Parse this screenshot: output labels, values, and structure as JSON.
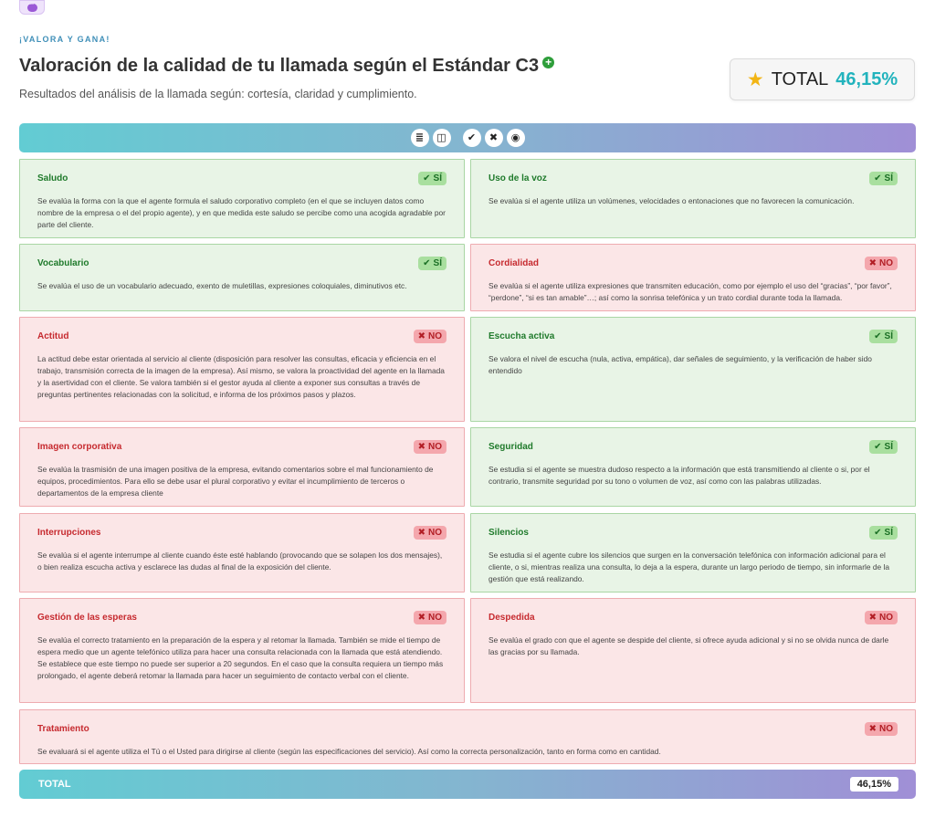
{
  "header": {
    "kicker": "¡VALORA Y GANA!",
    "title": "Valoración de la calidad de tu llamada según el Estándar C3",
    "subtitle": "Resultados del análisis de la llamada según: cortesía, claridad y cumplimiento."
  },
  "total_card": {
    "label": "TOTAL",
    "value": "46,15%"
  },
  "toolbar": {
    "icons": [
      "list-icon",
      "columns-icon",
      "check-icon",
      "close-icon",
      "eye-icon"
    ]
  },
  "badges": {
    "yes": "SÍ",
    "no": "NO"
  },
  "colors": {
    "yes_bg": "#e8f4e6",
    "no_bg": "#fbe6e7",
    "accent": "#22b3bd"
  },
  "criteria": [
    {
      "title": "Saludo",
      "result": "yes",
      "desc": "Se evalúa la forma con la que el agente formula el saludo corporativo completo (en el que se incluyen datos como nombre de la empresa o el del propio agente), y en que medida este saludo se percibe como una acogida agradable por parte del cliente."
    },
    {
      "title": "Uso de la voz",
      "result": "yes",
      "desc": "Se evalúa si el agente utiliza un volúmenes, velocidades o entonaciones que no favorecen la comunicación."
    },
    {
      "title": "Vocabulario",
      "result": "yes",
      "desc": "Se evalúa el uso de un vocabulario adecuado, exento de muletillas, expresiones coloquiales, diminutivos etc."
    },
    {
      "title": "Cordialidad",
      "result": "no",
      "desc": "Se evalúa si el agente utiliza expresiones que transmiten educación, como por ejemplo el uso del “gracias”, “por favor”, “perdone”, “si es tan amable”…; así como la sonrisa telefónica y un trato cordial durante toda la llamada."
    },
    {
      "title": "Actitud",
      "result": "no",
      "desc": "La actitud debe estar orientada al servicio al cliente (disposición para resolver las consultas, eficacia y eficiencia en el trabajo, transmisión correcta de la imagen de la empresa). Así mismo, se valora la proactividad del agente en la llamada y la asertividad con el cliente. Se valora también si el gestor ayuda al cliente a exponer sus consultas a través de preguntas pertinentes relacionadas con la solicitud, e informa de los próximos pasos y plazos."
    },
    {
      "title": "Escucha activa",
      "result": "yes",
      "desc": "Se valora el nivel de escucha (nula, activa, empática), dar señales de seguimiento, y la verificación de haber sido entendido"
    },
    {
      "title": "Imagen corporativa",
      "result": "no",
      "desc": "Se evalúa la trasmisión de una imagen positiva de la empresa, evitando comentarios sobre el mal funcionamiento de equipos, procedimientos. Para ello se debe usar el plural corporativo y evitar el incumplimiento de terceros o departamentos de la empresa cliente"
    },
    {
      "title": "Seguridad",
      "result": "yes",
      "desc": "Se estudia si el agente se muestra dudoso respecto a la información que está transmitiendo al cliente o si, por el contrario, transmite seguridad por su tono o volumen de voz, así como con las palabras utilizadas."
    },
    {
      "title": "Interrupciones",
      "result": "no",
      "desc": "Se evalúa si el agente interrumpe al cliente cuando éste esté hablando (provocando que se solapen los dos mensajes), o bien realiza escucha activa y esclarece las dudas al final de la exposición del cliente."
    },
    {
      "title": "Silencios",
      "result": "yes",
      "desc": "Se estudia si el agente cubre los silencios que surgen en la conversación telefónica con información adicional para el cliente, o si, mientras realiza una consulta, lo deja a la espera, durante un largo periodo de tiempo, sin informarle de la gestión que está realizando."
    },
    {
      "title": "Gestión de las esperas",
      "result": "no",
      "desc": "Se evalúa el correcto tratamiento en la preparación de la espera y al retomar la llamada. También se mide el tiempo de espera medio que un agente telefónico utiliza para hacer una consulta relacionada con la llamada que está atendiendo. Se establece que este tiempo no puede ser superior a 20 segundos. En el caso que la consulta requiera un tiempo más prolongado, el agente deberá retomar la llamada para hacer un seguimiento de contacto verbal con el cliente."
    },
    {
      "title": "Despedida",
      "result": "no",
      "desc": "Se evalúa el grado con que el agente se despide del cliente, si ofrece ayuda adicional y si no se olvida nunca de darle las gracias por su llamada."
    },
    {
      "title": "Tratamiento",
      "result": "no",
      "desc": "Se evaluará si el agente utiliza el Tú o el Usted para dirigirse al cliente (según las especificaciones del servicio). Así como la correcta personalización, tanto en forma como en cantidad."
    }
  ],
  "footer": {
    "label": "TOTAL",
    "value": "46,15%"
  }
}
